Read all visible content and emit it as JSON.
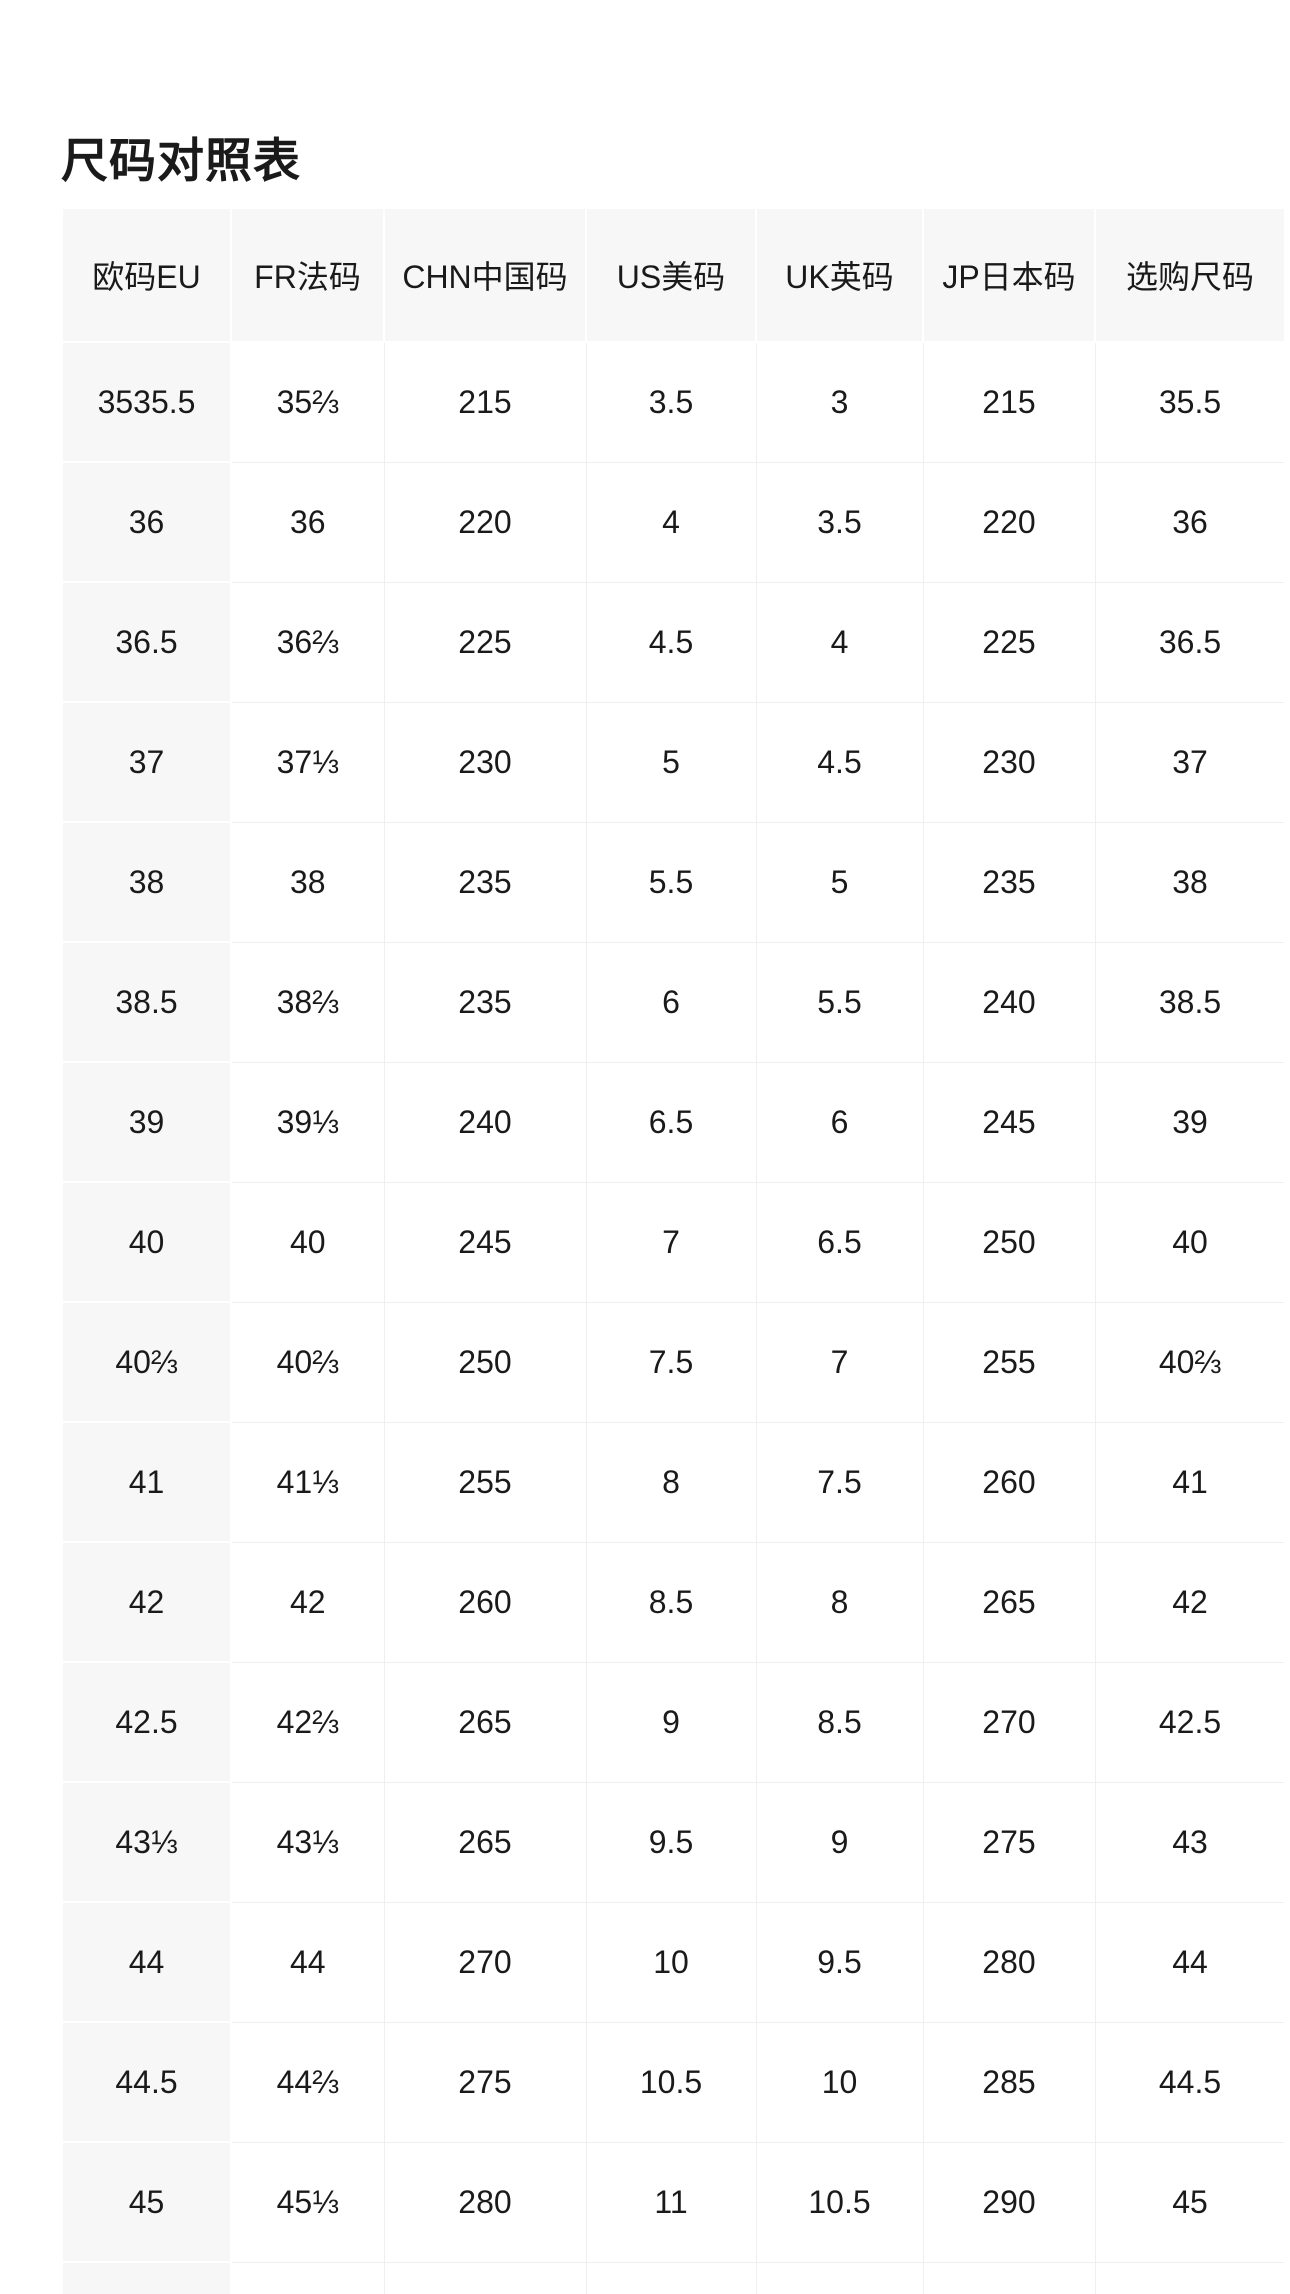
{
  "page": {
    "title": "尺码对照表"
  },
  "theme": {
    "header_bg": "#f7f7f8",
    "grid_line": "#efeff1",
    "text": "#1a1a1a",
    "page_bg": "#ffffff"
  },
  "table": {
    "columns": [
      "欧码EU",
      "FR法码",
      "CHN中国码",
      "US美码",
      "UK英码",
      "JP日本码",
      "选购尺码"
    ],
    "rows": [
      [
        "3535.5",
        "35⅔",
        "215",
        "3.5",
        "3",
        "215",
        "35.5"
      ],
      [
        "36",
        "36",
        "220",
        "4",
        "3.5",
        "220",
        "36"
      ],
      [
        "36.5",
        "36⅔",
        "225",
        "4.5",
        "4",
        "225",
        "36.5"
      ],
      [
        "37",
        "37⅓",
        "230",
        "5",
        "4.5",
        "230",
        "37"
      ],
      [
        "38",
        "38",
        "235",
        "5.5",
        "5",
        "235",
        "38"
      ],
      [
        "38.5",
        "38⅔",
        "235",
        "6",
        "5.5",
        "240",
        "38.5"
      ],
      [
        "39",
        "39⅓",
        "240",
        "6.5",
        "6",
        "245",
        "39"
      ],
      [
        "40",
        "40",
        "245",
        "7",
        "6.5",
        "250",
        "40"
      ],
      [
        "40⅔",
        "40⅔",
        "250",
        "7.5",
        "7",
        "255",
        "40⅔"
      ],
      [
        "41",
        "41⅓",
        "255",
        "8",
        "7.5",
        "260",
        "41"
      ],
      [
        "42",
        "42",
        "260",
        "8.5",
        "8",
        "265",
        "42"
      ],
      [
        "42.5",
        "42⅔",
        "265",
        "9",
        "8.5",
        "270",
        "42.5"
      ],
      [
        "43⅓",
        "43⅓",
        "265",
        "9.5",
        "9",
        "275",
        "43"
      ],
      [
        "44",
        "44",
        "270",
        "10",
        "9.5",
        "280",
        "44"
      ],
      [
        "44.5",
        "44⅔",
        "275",
        "10.5",
        "10",
        "285",
        "44.5"
      ],
      [
        "45",
        "45⅓",
        "280",
        "11",
        "10.5",
        "290",
        "45"
      ]
    ],
    "trailing_partial_row": true
  }
}
